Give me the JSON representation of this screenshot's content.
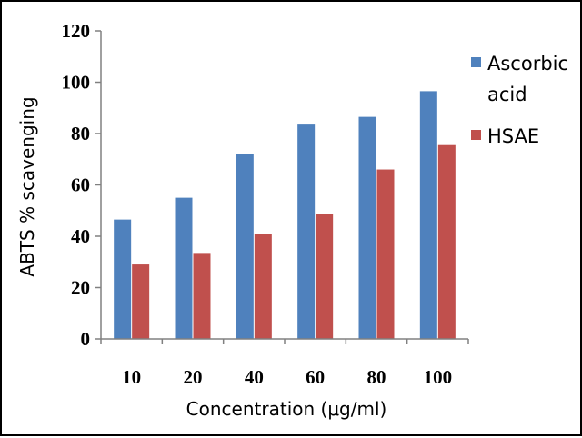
{
  "chart_data": {
    "type": "bar",
    "categories": [
      "10",
      "20",
      "40",
      "60",
      "80",
      "100"
    ],
    "series": [
      {
        "name": "Ascorbic acid",
        "legend_lines": [
          "Ascorbic",
          "acid"
        ],
        "color": "#4F81BD",
        "values": [
          46.5,
          55,
          72,
          83.5,
          86.5,
          96.5
        ]
      },
      {
        "name": "HSAE",
        "legend_lines": [
          "HSAE"
        ],
        "color": "#C0504D",
        "values": [
          29,
          33.5,
          41,
          48.5,
          66,
          75.5
        ]
      }
    ],
    "xlabel": "Concentration (μg/ml)",
    "ylabel": "ABTS % scavenging",
    "ylim": [
      0,
      120
    ],
    "yticks": [
      "0",
      "20",
      "40",
      "60",
      "80",
      "100",
      "120"
    ],
    "grid": false,
    "legend_position": "right"
  }
}
